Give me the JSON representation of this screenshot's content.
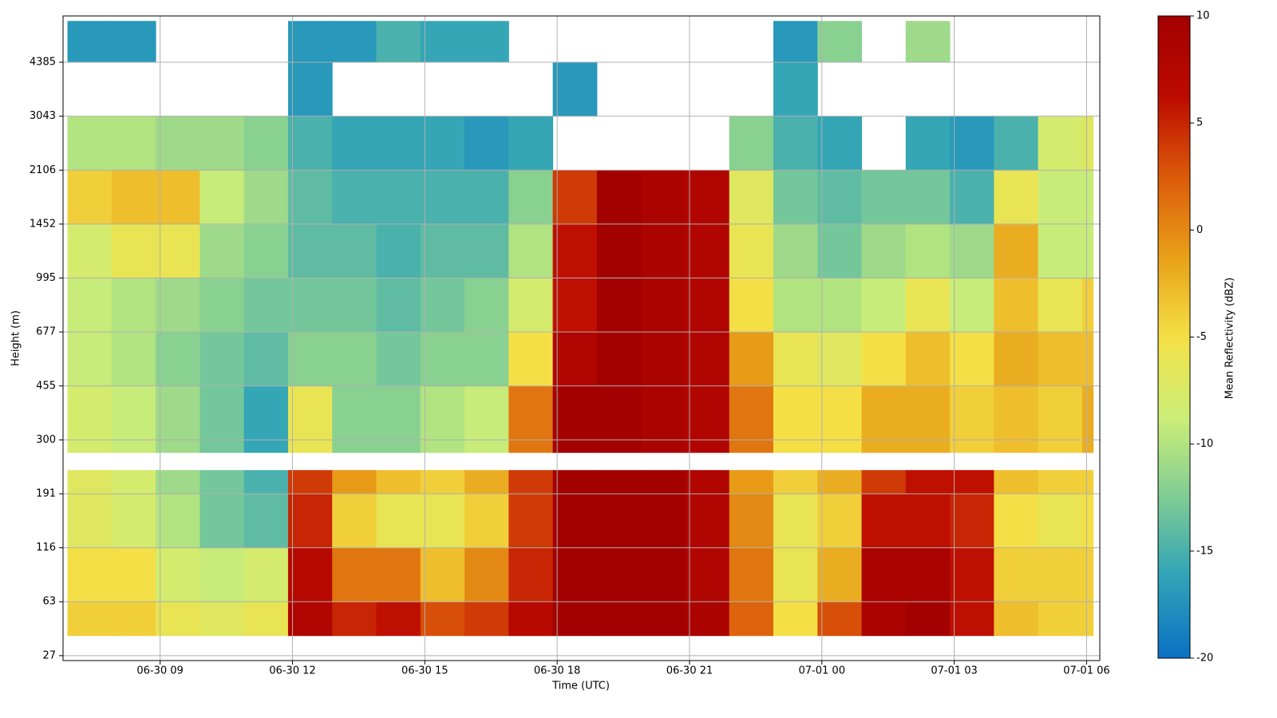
{
  "chart_data": {
    "type": "heatmap",
    "xlabel": "Time (UTC)",
    "ylabel": "Height (m)",
    "colorbar_label": "Mean Reflectivity (dBZ)",
    "xlim": [
      6.8,
      30.3
    ],
    "xticks": [
      {
        "value": 9,
        "label": "06-30 09"
      },
      {
        "value": 12,
        "label": "06-30 12"
      },
      {
        "value": 15,
        "label": "06-30 15"
      },
      {
        "value": 18,
        "label": "06-30 18"
      },
      {
        "value": 21,
        "label": "06-30 21"
      },
      {
        "value": 24,
        "label": "07-01 00"
      },
      {
        "value": 27,
        "label": "07-01 03"
      },
      {
        "value": 30,
        "label": "07-01 06"
      }
    ],
    "ylim": [
      25,
      6000
    ],
    "yticks": [
      27,
      63,
      116,
      191,
      300,
      455,
      677,
      995,
      1452,
      2106,
      3043,
      4385
    ],
    "zlim": [
      -20,
      10
    ],
    "zticks": [
      -20,
      -15,
      -10,
      -5,
      0,
      5,
      10
    ],
    "colormap": [
      "#0a70c4",
      "#2fa3b8",
      "#7fcc95",
      "#ccee77",
      "#f4e046",
      "#e8a018",
      "#dc5a0a",
      "#bc0a00",
      "#a30000"
    ],
    "grid": true,
    "x_bins": [
      6.9,
      7.9,
      8.9,
      9.9,
      10.9,
      11.9,
      12.9,
      13.9,
      14.9,
      15.9,
      16.9,
      17.9,
      18.9,
      19.9,
      20.9,
      21.9,
      22.9,
      23.9,
      24.9,
      25.9,
      26.9,
      27.9,
      28.9,
      29.9,
      30.15
    ],
    "y_bins": [
      37,
      63,
      116,
      191,
      233,
      270,
      455,
      677,
      995,
      1452,
      2106,
      3043,
      4385,
      5800
    ],
    "z": [
      [
        -4,
        -4,
        -6,
        -7,
        -6,
        8,
        5,
        6,
        3,
        4,
        7,
        10,
        10,
        10,
        9,
        2,
        -5,
        3,
        9,
        10,
        6,
        -3,
        -4,
        -4
      ],
      [
        -5,
        -5,
        -8,
        -9,
        -8,
        7,
        1,
        1,
        -3,
        0,
        5,
        10,
        10,
        10,
        8,
        1,
        -6,
        -2,
        9,
        9,
        6,
        -4,
        -4,
        -4
      ],
      [
        -7,
        -8,
        -10,
        -13,
        -14,
        5,
        -4,
        -6,
        -6,
        -4,
        4,
        10,
        10,
        10,
        8,
        0,
        -6,
        -4,
        6,
        6,
        5,
        -5,
        -6,
        -5
      ],
      [
        -7,
        -8,
        -11,
        -13,
        -15,
        4,
        -1,
        -3,
        -4,
        -2,
        4,
        10,
        10,
        10,
        8,
        -1,
        -4,
        -2,
        4,
        6,
        6,
        -3,
        -4,
        -4
      ],
      [
        null,
        null,
        null,
        null,
        null,
        null,
        null,
        null,
        null,
        null,
        null,
        null,
        null,
        null,
        null,
        null,
        null,
        null,
        null,
        null,
        null,
        null,
        null,
        null
      ],
      [
        -8,
        -9,
        -11,
        -13,
        -16,
        -6,
        -12,
        -12,
        -10,
        -9,
        1,
        10,
        10,
        9,
        8,
        1,
        -5,
        -5,
        -2,
        -2,
        -4,
        -3,
        -4,
        -2
      ],
      [
        -9,
        -10,
        -12,
        -13,
        -14,
        -12,
        -12,
        -13,
        -12,
        -12,
        -5,
        8,
        10,
        9,
        8,
        -1,
        -6,
        -7,
        -5,
        -3,
        -5,
        -2,
        -3,
        -3
      ],
      [
        -9,
        -10,
        -11,
        -12,
        -13,
        -13,
        -13,
        -14,
        -13,
        -12,
        -8,
        6,
        10,
        9,
        8,
        -5,
        -10,
        -10,
        -9,
        -6,
        -9,
        -3,
        -6,
        -4
      ],
      [
        -8,
        -6,
        -6,
        -11,
        -12,
        -14,
        -14,
        -15,
        -14,
        -14,
        -10,
        6,
        10,
        9,
        8,
        -6,
        -11,
        -13,
        -11,
        -10,
        -11,
        -2,
        -9,
        -9
      ],
      [
        -4,
        -3,
        -3,
        -9,
        -11,
        -14,
        -15,
        -15,
        -15,
        -15,
        -12,
        4,
        10,
        9,
        8,
        -7,
        -13,
        -14,
        -13,
        -13,
        -15,
        -6,
        -9,
        -9
      ],
      [
        -10,
        -10,
        -11,
        -11,
        -12,
        -15,
        -16,
        -16,
        -16,
        -17,
        -16,
        null,
        null,
        null,
        null,
        -12,
        -15,
        -16,
        null,
        -16,
        -17,
        -15,
        -8,
        -7
      ],
      [
        null,
        null,
        null,
        null,
        null,
        -17,
        null,
        null,
        null,
        null,
        null,
        -17,
        null,
        null,
        null,
        null,
        -16,
        null,
        null,
        null,
        null,
        null,
        null,
        null
      ],
      [
        -17,
        -17,
        null,
        null,
        null,
        -17,
        -17,
        -15,
        -16,
        -16,
        null,
        null,
        null,
        null,
        null,
        null,
        -17,
        -12,
        null,
        -11,
        null,
        null,
        null,
        null
      ]
    ]
  }
}
